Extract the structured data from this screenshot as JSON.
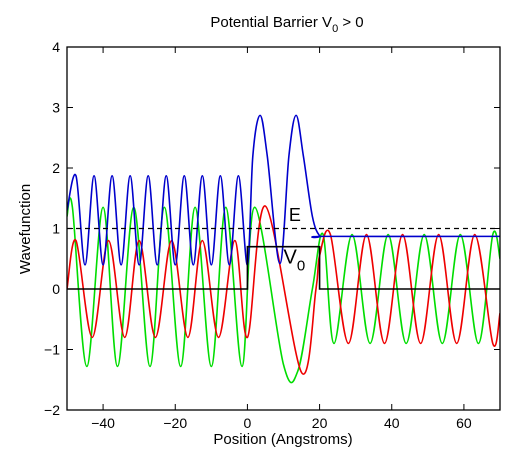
{
  "chart_data": {
    "type": "line",
    "title": {
      "main": "Potential Barrier V",
      "sub": "0",
      "suffix": " > 0"
    },
    "xlabel": "Position (Angstroms)",
    "ylabel": "Wavefunction",
    "xlim": [
      -50,
      70
    ],
    "ylim": [
      -2,
      4
    ],
    "xticks": [
      -40,
      -20,
      0,
      20,
      40,
      60
    ],
    "xtick_labels": [
      "−40",
      "−20",
      "0",
      "20",
      "40",
      "60"
    ],
    "yticks": [
      -2,
      -1,
      0,
      1,
      2,
      3,
      4
    ],
    "ytick_labels": [
      "−2",
      "−1",
      "0",
      "1",
      "2",
      "3",
      "4"
    ],
    "grid": false,
    "energy_level": 1.0,
    "barrier": {
      "start": 0,
      "end": 20,
      "height": 0.7
    },
    "annotations": {
      "energy": {
        "text": "E",
        "x": 11.5,
        "y": 1.12
      },
      "barrier": {
        "text": "V",
        "sub": "0",
        "x": 10,
        "y": 0.42
      }
    },
    "series": [
      {
        "role": "probability-density",
        "color": "#0000cc",
        "points": [
          [
            -50,
            1.3
          ],
          [
            -47.5,
            1.87
          ],
          [
            -45,
            0.4
          ],
          [
            -42.5,
            1.87
          ],
          [
            -40,
            0.4
          ],
          [
            -37.5,
            1.87
          ],
          [
            -35,
            0.4
          ],
          [
            -32.5,
            1.87
          ],
          [
            -30,
            0.4
          ],
          [
            -27.5,
            1.87
          ],
          [
            -25,
            0.4
          ],
          [
            -22.5,
            1.87
          ],
          [
            -20,
            0.4
          ],
          [
            -17.5,
            1.87
          ],
          [
            -15,
            0.4
          ],
          [
            -12.5,
            1.87
          ],
          [
            -10,
            0.4
          ],
          [
            -7.5,
            1.87
          ],
          [
            -5,
            0.4
          ],
          [
            -2.5,
            1.87
          ],
          [
            0,
            0.4
          ],
          [
            1.5,
            2.2
          ],
          [
            3.5,
            2.87
          ],
          [
            5.5,
            2.2
          ],
          [
            9,
            0.42
          ],
          [
            11.5,
            2.2
          ],
          [
            13.5,
            2.87
          ],
          [
            15.5,
            2.2
          ],
          [
            18,
            1.2
          ],
          [
            20,
            0.88
          ],
          [
            22,
            0.87
          ],
          [
            70,
            0.87
          ]
        ]
      },
      {
        "role": "real-part",
        "color": "#00dd00",
        "points": [
          [
            -50,
            1.2
          ],
          [
            -48.5,
            1.35
          ],
          [
            -44.5,
            -1.28
          ],
          [
            -40,
            1.35
          ],
          [
            -36,
            -1.28
          ],
          [
            -31.5,
            1.35
          ],
          [
            -27,
            -1.28
          ],
          [
            -23,
            1.35
          ],
          [
            -18.5,
            -1.28
          ],
          [
            -14.5,
            1.35
          ],
          [
            -10,
            -1.28
          ],
          [
            -6,
            1.35
          ],
          [
            -1.5,
            -1.28
          ],
          [
            2,
            1.35
          ],
          [
            10,
            -1.25
          ],
          [
            14,
            -1.35
          ],
          [
            18,
            0.0
          ],
          [
            21,
            0.9
          ],
          [
            24,
            -0.9
          ],
          [
            29,
            0.9
          ],
          [
            34,
            -0.9
          ],
          [
            39,
            0.9
          ],
          [
            44,
            -0.9
          ],
          [
            49,
            0.9
          ],
          [
            54,
            -0.9
          ],
          [
            59,
            0.9
          ],
          [
            64,
            -0.9
          ],
          [
            68,
            0.9
          ],
          [
            70,
            0.5
          ]
        ]
      },
      {
        "role": "imaginary-part",
        "color": "#ee0000",
        "points": [
          [
            -50,
            0.0
          ],
          [
            -47.5,
            0.8
          ],
          [
            -43,
            -0.8
          ],
          [
            -38.5,
            0.8
          ],
          [
            -34,
            -0.8
          ],
          [
            -30,
            0.8
          ],
          [
            -25.5,
            -0.8
          ],
          [
            -21,
            0.8
          ],
          [
            -16.5,
            -0.8
          ],
          [
            -12.5,
            0.8
          ],
          [
            -8,
            -0.8
          ],
          [
            -3.5,
            0.8
          ],
          [
            0,
            -0.8
          ],
          [
            5,
            1.37
          ],
          [
            15,
            -1.38
          ],
          [
            19,
            0.0
          ],
          [
            20,
            0.55
          ],
          [
            23,
            0.9
          ],
          [
            28,
            -0.9
          ],
          [
            33,
            0.9
          ],
          [
            38,
            -0.9
          ],
          [
            43,
            0.9
          ],
          [
            48,
            -0.9
          ],
          [
            53,
            0.9
          ],
          [
            58,
            -0.9
          ],
          [
            63,
            0.9
          ],
          [
            68,
            -0.9
          ],
          [
            70,
            -0.4
          ]
        ]
      }
    ]
  }
}
